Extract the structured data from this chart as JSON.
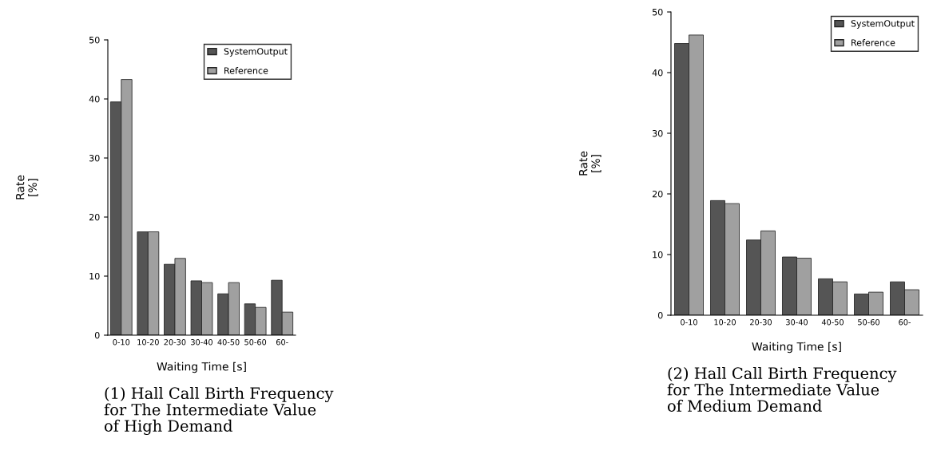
{
  "chart_data": [
    {
      "type": "bar",
      "title": "(1) Hall Call Birth Frequency\nfor The Intermediate Value\nof High Demand",
      "xlabel": "Waiting Time [s]",
      "ylabel": "Rate\n[%]",
      "categories": [
        "0-10",
        "10-20",
        "20-30",
        "30-40",
        "40-50",
        "50-60",
        "60-"
      ],
      "series": [
        {
          "name": "SystemOutput",
          "color": "#555555",
          "values": [
            39.5,
            17.5,
            12,
            9.2,
            7,
            5.3,
            9.3
          ]
        },
        {
          "name": "Reference",
          "color": "#a0a0a0",
          "values": [
            43.3,
            17.5,
            13,
            8.9,
            8.9,
            4.7,
            3.9
          ]
        }
      ],
      "ylim": [
        0,
        50
      ],
      "yticks": [
        0,
        10,
        20,
        30,
        40,
        50
      ],
      "legend": "top right"
    },
    {
      "type": "bar",
      "title": "(2) Hall Call Birth Frequency\nfor The Intermediate Value\nof Medium Demand",
      "xlabel": "Waiting Time [s]",
      "ylabel": "Rate\n[%]",
      "categories": [
        "0-10",
        "10-20",
        "20-30",
        "30-40",
        "40-50",
        "50-60",
        "60-"
      ],
      "series": [
        {
          "name": "SystemOutput",
          "color": "#555555",
          "values": [
            44.8,
            18.9,
            12.4,
            9.6,
            6,
            3.5,
            5.5
          ]
        },
        {
          "name": "Reference",
          "color": "#a0a0a0",
          "values": [
            46.2,
            18.4,
            13.9,
            9.4,
            5.5,
            3.8,
            4.2
          ]
        }
      ],
      "ylim": [
        0,
        50
      ],
      "yticks": [
        0,
        10,
        20,
        30,
        40,
        50
      ],
      "legend": "top right"
    }
  ]
}
